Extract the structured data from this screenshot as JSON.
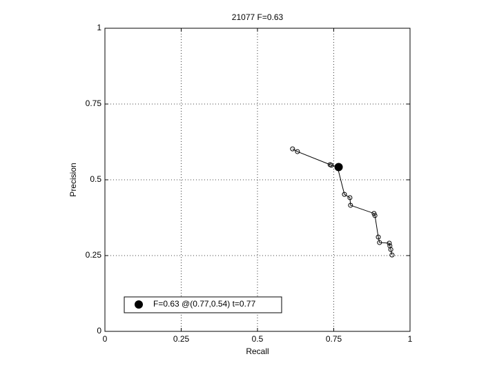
{
  "chart_data": {
    "type": "line",
    "title": "21077 F=0.63",
    "x_label": "Recall",
    "y_label": "Precision",
    "series": [
      {
        "name": "curve",
        "color": "#000000",
        "x": [
          0.615,
          0.631,
          0.738,
          0.742,
          0.762,
          0.785,
          0.803,
          0.805,
          0.882,
          0.885,
          0.896,
          0.9,
          0.932,
          0.934,
          0.937,
          0.941
        ],
        "values": [
          0.602,
          0.593,
          0.55,
          0.548,
          0.543,
          0.452,
          0.441,
          0.416,
          0.389,
          0.382,
          0.311,
          0.293,
          0.291,
          0.282,
          0.27,
          0.252
        ]
      }
    ],
    "best": {
      "name": "F=0.63 @(0.77,0.54) t=0.77",
      "color": "#000000",
      "x": 0.766,
      "y": 0.542
    },
    "xlim": [
      0,
      1
    ],
    "ylim": [
      0,
      1
    ],
    "xticks": [
      0,
      0.25,
      0.5,
      0.75,
      1
    ],
    "yticks": [
      0,
      0.25,
      0.5,
      0.75,
      1
    ],
    "grid": true
  }
}
